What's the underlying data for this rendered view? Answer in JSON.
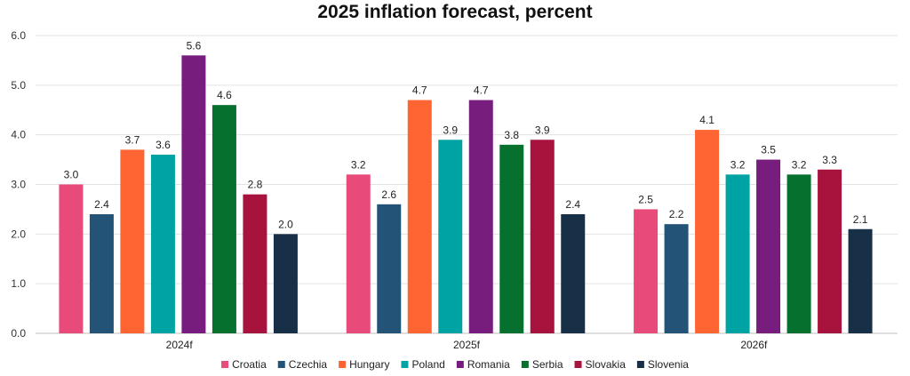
{
  "chart_data": {
    "type": "bar",
    "title": "2025 inflation forecast, percent",
    "xlabel": "",
    "ylabel": "",
    "categories": [
      "2024f",
      "2025f",
      "2026f"
    ],
    "ylim": [
      0,
      6
    ],
    "yticks": [
      "0.0",
      "1.0",
      "2.0",
      "3.0",
      "4.0",
      "5.0",
      "6.0"
    ],
    "grid": true,
    "legend_position": "bottom",
    "series": [
      {
        "name": "Croatia",
        "color": "#E84A7A",
        "values": [
          3.0,
          3.2,
          2.5
        ],
        "labels": [
          "3.0",
          "3.2",
          "2.5"
        ]
      },
      {
        "name": "Czechia",
        "color": "#245378",
        "values": [
          2.4,
          2.6,
          2.2
        ],
        "labels": [
          "2.4",
          "2.6",
          "2.2"
        ]
      },
      {
        "name": "Hungary",
        "color": "#FF6433",
        "values": [
          3.7,
          4.7,
          4.1
        ],
        "labels": [
          "3.7",
          "4.7",
          "4.1"
        ]
      },
      {
        "name": "Poland",
        "color": "#00A3A3",
        "values": [
          3.6,
          3.9,
          3.2
        ],
        "labels": [
          "3.6",
          "3.9",
          "3.2"
        ]
      },
      {
        "name": "Romania",
        "color": "#761D7E",
        "values": [
          5.6,
          4.7,
          3.5
        ],
        "labels": [
          "5.6",
          "4.7",
          "3.5"
        ]
      },
      {
        "name": "Serbia",
        "color": "#06702E",
        "values": [
          4.6,
          3.8,
          3.2
        ],
        "labels": [
          "4.6",
          "3.8",
          "3.2"
        ]
      },
      {
        "name": "Slovakia",
        "color": "#A8133E",
        "values": [
          2.8,
          3.9,
          3.3
        ],
        "labels": [
          "2.8",
          "3.9",
          "3.3"
        ]
      },
      {
        "name": "Slovenia",
        "color": "#172F47",
        "values": [
          2.0,
          2.4,
          2.1
        ],
        "labels": [
          "2.0",
          "2.4",
          "2.1"
        ]
      }
    ]
  }
}
